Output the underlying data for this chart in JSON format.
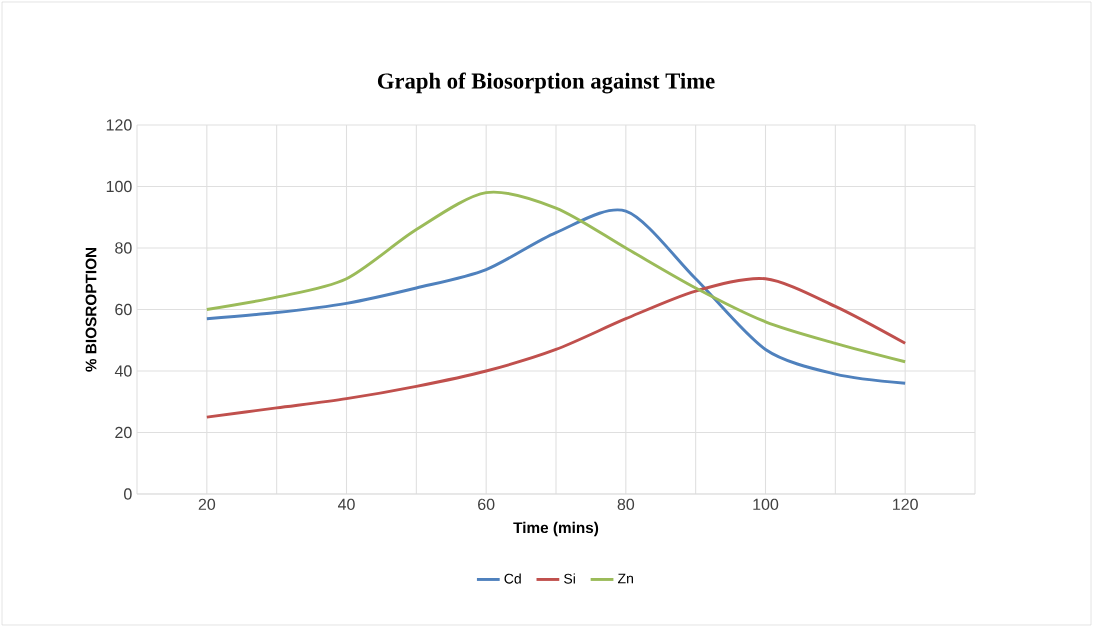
{
  "chart_data": {
    "type": "line",
    "title": "Graph of Biosorption against Time",
    "xlabel": "Time (mins)",
    "ylabel": "% BIOSROPTION",
    "x": [
      20,
      30,
      40,
      50,
      60,
      70,
      80,
      90,
      100,
      110,
      120
    ],
    "series": [
      {
        "name": "Cd",
        "color": "#4f81bd",
        "values": [
          57,
          59,
          62,
          67,
          73,
          85,
          92,
          70,
          47,
          39,
          36
        ]
      },
      {
        "name": "Si",
        "color": "#c0504d",
        "values": [
          25,
          28,
          31,
          35,
          40,
          47,
          57,
          66,
          70,
          61,
          49
        ]
      },
      {
        "name": "Zn",
        "color": "#9bbb59",
        "values": [
          60,
          64,
          70,
          86,
          98,
          93,
          80,
          67,
          56,
          49,
          43
        ]
      }
    ],
    "xlim": [
      10,
      130
    ],
    "ylim": [
      0,
      120
    ],
    "xticks": [
      {
        "value": 10,
        "label": null
      },
      20,
      {
        "value": 30,
        "label": null
      },
      40,
      {
        "value": 50,
        "label": null
      },
      60,
      {
        "value": 70,
        "label": null
      },
      80,
      {
        "value": 90,
        "label": null
      },
      100,
      {
        "value": 110,
        "label": null
      },
      120,
      {
        "value": 130,
        "label": null
      }
    ],
    "yticks": [
      0,
      20,
      40,
      60,
      80,
      100,
      120
    ],
    "grid": true,
    "legend": "bottom",
    "marker": "none",
    "line_style": "solid"
  }
}
